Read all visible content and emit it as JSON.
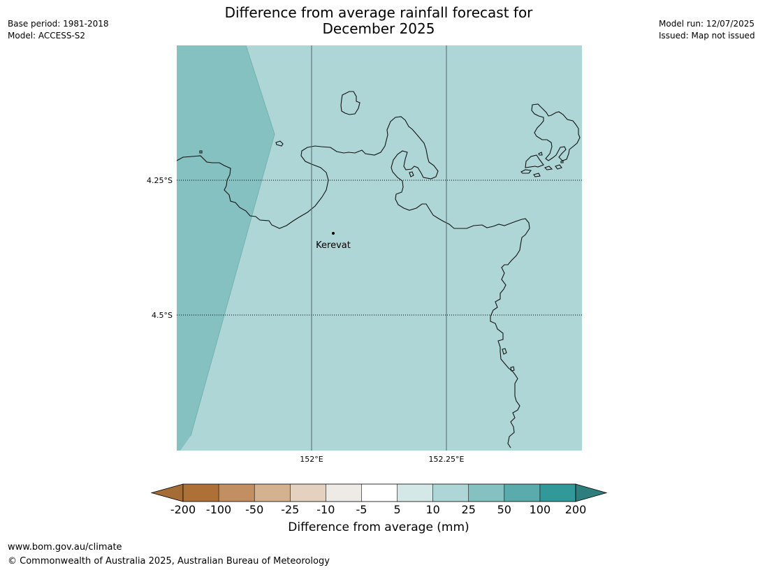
{
  "meta_left": {
    "base_period": "Base period: 1981-2018",
    "model": "Model: ACCESS-S2"
  },
  "meta_right": {
    "model_run": "Model run: 12/07/2025",
    "issued": "Issued: Map not issued"
  },
  "title_lines": [
    "Difference from average rainfall forecast for",
    "December 2025"
  ],
  "map": {
    "place_label": "Kerevat",
    "lat_ticks": [
      "4.25°S",
      "4.5°S"
    ],
    "lon_ticks": [
      "152°E",
      "152.25°E"
    ],
    "colors": {
      "band_25_50": "#85c1c1",
      "band_10_25": "#aed6d6",
      "coastline": "#111111"
    }
  },
  "colorbar": {
    "tick_labels": [
      "-200",
      "-100",
      "-50",
      "-25",
      "-10",
      "-5",
      "5",
      "10",
      "25",
      "50",
      "100",
      "200"
    ],
    "colors": [
      "#a56c35",
      "#ad7137",
      "#c28f63",
      "#d4b290",
      "#e4d1bf",
      "#eeebe6",
      "#ffffff",
      "#d4e9e7",
      "#aed6d6",
      "#85c1c1",
      "#5aabab",
      "#31999a",
      "#2e7e7d"
    ],
    "label": "Difference from average (mm)"
  },
  "footer": {
    "url": "www.bom.gov.au/climate",
    "copyright": "© Commonwealth of Australia 2025, Australian Bureau of Meteorology"
  }
}
